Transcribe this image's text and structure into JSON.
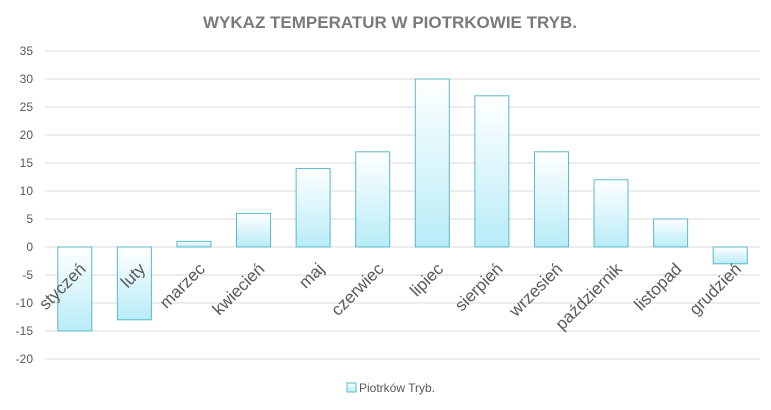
{
  "chart_data": {
    "type": "bar",
    "title": "WYKAZ TEMPERATUR W PIOTRKOWIE TRYB.",
    "xlabel": "",
    "ylabel": "",
    "categories": [
      "styczeń",
      "luty",
      "marzec",
      "kwiecień",
      "maj",
      "czerwiec",
      "lipiec",
      "sierpień",
      "wrzesień",
      "październik",
      "listopad",
      "grudzień"
    ],
    "series": [
      {
        "name": "Piotrków Tryb.",
        "values": [
          -15,
          -13,
          1,
          6,
          14,
          17,
          30,
          27,
          17,
          12,
          5,
          -3
        ]
      }
    ],
    "ylim": [
      -20,
      35
    ],
    "yticks": [
      35,
      30,
      25,
      20,
      15,
      10,
      5,
      0,
      -5,
      -10,
      -15,
      -20
    ],
    "grid": true,
    "legend_position": "bottom",
    "colors": {
      "bar_fill_top": "#ffffff",
      "bar_fill_bottom": "#b8ecf7",
      "bar_stroke": "#5bb8c9"
    }
  }
}
